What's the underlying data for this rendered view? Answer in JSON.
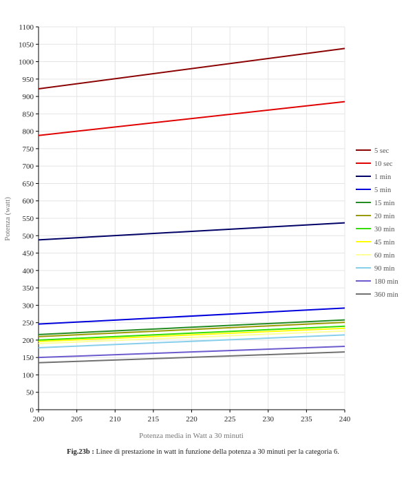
{
  "chart_data": {
    "type": "line",
    "xlabel": "Potenza media in Watt a 30 minuti",
    "ylabel": "Potenza (watt)",
    "xlim": [
      200,
      240
    ],
    "ylim": [
      0,
      1100
    ],
    "x_ticks": [
      200,
      205,
      210,
      215,
      220,
      225,
      230,
      235,
      240
    ],
    "y_ticks": [
      0,
      50,
      100,
      150,
      200,
      250,
      300,
      350,
      400,
      450,
      500,
      550,
      600,
      650,
      700,
      750,
      800,
      850,
      900,
      950,
      1000,
      1050,
      1100
    ],
    "grid": true,
    "legend_position": "right",
    "x": [
      200,
      240
    ],
    "series": [
      {
        "name": "5 sec",
        "color": "#8b0000",
        "values": [
          922,
          1038
        ]
      },
      {
        "name": "10 sec",
        "color": "#e00000",
        "values": [
          788,
          885
        ]
      },
      {
        "name": "1 min",
        "color": "#000066",
        "values": [
          488,
          537
        ]
      },
      {
        "name": "5 min",
        "color": "#0000dd",
        "values": [
          246,
          292
        ]
      },
      {
        "name": "15 min",
        "color": "#228b22",
        "values": [
          216,
          258
        ]
      },
      {
        "name": "20 min",
        "color": "#999900",
        "values": [
          210,
          251
        ]
      },
      {
        "name": "30 min",
        "color": "#33dd00",
        "values": [
          200,
          240
        ]
      },
      {
        "name": "45 min",
        "color": "#ffff00",
        "values": [
          196,
          234
        ]
      },
      {
        "name": "60 min",
        "color": "#ffff99",
        "values": [
          190,
          226
        ]
      },
      {
        "name": "90 min",
        "color": "#87ceeb",
        "values": [
          178,
          215
        ]
      },
      {
        "name": "180 min",
        "color": "#6a5acd",
        "values": [
          150,
          182
        ]
      },
      {
        "name": "360 min",
        "color": "#707070",
        "values": [
          135,
          166
        ]
      }
    ]
  },
  "caption": {
    "label": "Fig.23b :",
    "text": " Linee di prestazione in watt in funzione della potenza a 30 minuti per la categoria 6."
  }
}
